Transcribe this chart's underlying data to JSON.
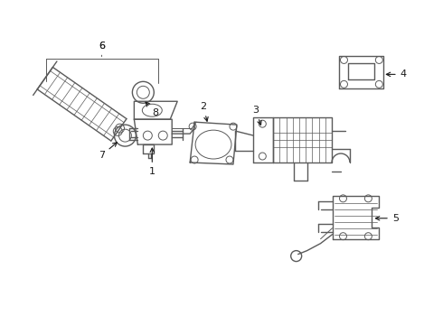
{
  "background_color": "#ffffff",
  "line_color": "#5a5a5a",
  "label_color": "#1a1a1a",
  "fig_width": 4.9,
  "fig_height": 3.6,
  "dpi": 100
}
